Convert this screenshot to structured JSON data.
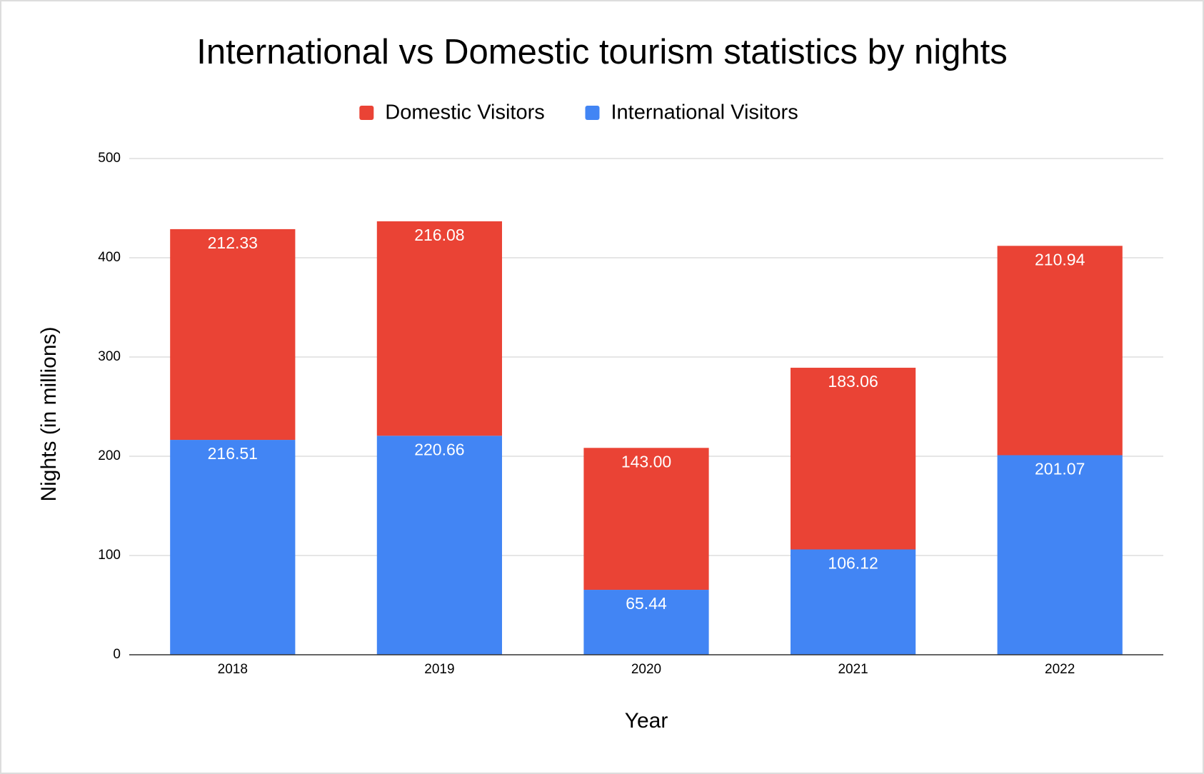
{
  "chart_data": {
    "type": "stacked_bar",
    "title": "International vs Domestic tourism statistics by nights",
    "x_label": "Year",
    "y_label": "Nights (in millions)",
    "categories": [
      "2018",
      "2019",
      "2020",
      "2021",
      "2022"
    ],
    "series": [
      {
        "name": "Domestic Visitors",
        "color": "#ea4335",
        "values": [
          212.33,
          216.08,
          143,
          183.06,
          210.94
        ],
        "value_labels": [
          "212.33",
          "216.08",
          "143.00",
          "183.06",
          "210.94"
        ]
      },
      {
        "name": "International Visitors",
        "color": "#4285f4",
        "values": [
          216.51,
          220.66,
          65.44,
          106.12,
          201.07
        ],
        "value_labels": [
          "216.51",
          "220.66",
          "65.44",
          "106.12",
          "201.07"
        ]
      }
    ],
    "ylim": [
      0,
      500
    ],
    "yticks": [
      0,
      100,
      200,
      300,
      400,
      500
    ],
    "grid": true,
    "legend": "top"
  }
}
